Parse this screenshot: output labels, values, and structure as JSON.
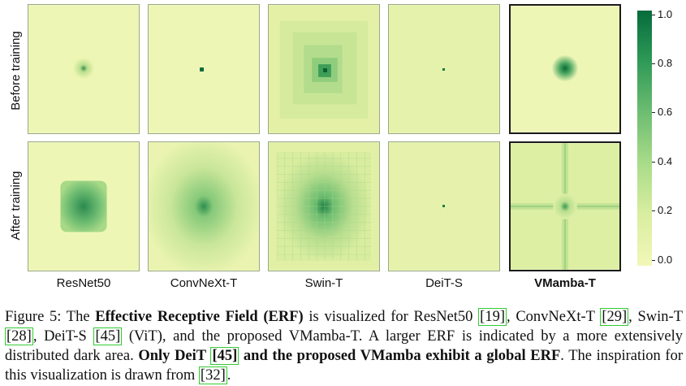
{
  "row_labels": {
    "before": "Before training",
    "after": "After training"
  },
  "models": [
    "ResNet50",
    "ConvNeXt-T",
    "Swin-T",
    "DeiT-S",
    "VMamba-T"
  ],
  "colorbar": {
    "ticks": [
      "0.0",
      "0.2",
      "0.4",
      "0.6",
      "0.8",
      "1.0"
    ],
    "colors": [
      "#f2f7b8",
      "#d9eea0",
      "#a9dc89",
      "#6dbd71",
      "#2f9a57",
      "#056b3c"
    ]
  },
  "caption": {
    "prefix": "Figure 5: The ",
    "bold1": "Effective Receptive Field (ERF)",
    "t1": " is visualized for ResNet50 ",
    "r19": "[19]",
    "t2": ", ConvNeXt-T ",
    "r29": "[29]",
    "t3": ", Swin-T ",
    "r28": "[28]",
    "t4": ", DeiT-S ",
    "r45a": "[45]",
    "t5": " (ViT), and the proposed VMamba-T. A larger ERF is indicated by a more extensively distributed dark area. ",
    "bold2a": "Only DeiT ",
    "r45b": "[45]",
    "bold2b": " and the proposed VMamba exhibit a global ERF",
    "t6": ". The inspiration for this visualization is drawn from ",
    "r32": "[32]",
    "t7": "."
  }
}
